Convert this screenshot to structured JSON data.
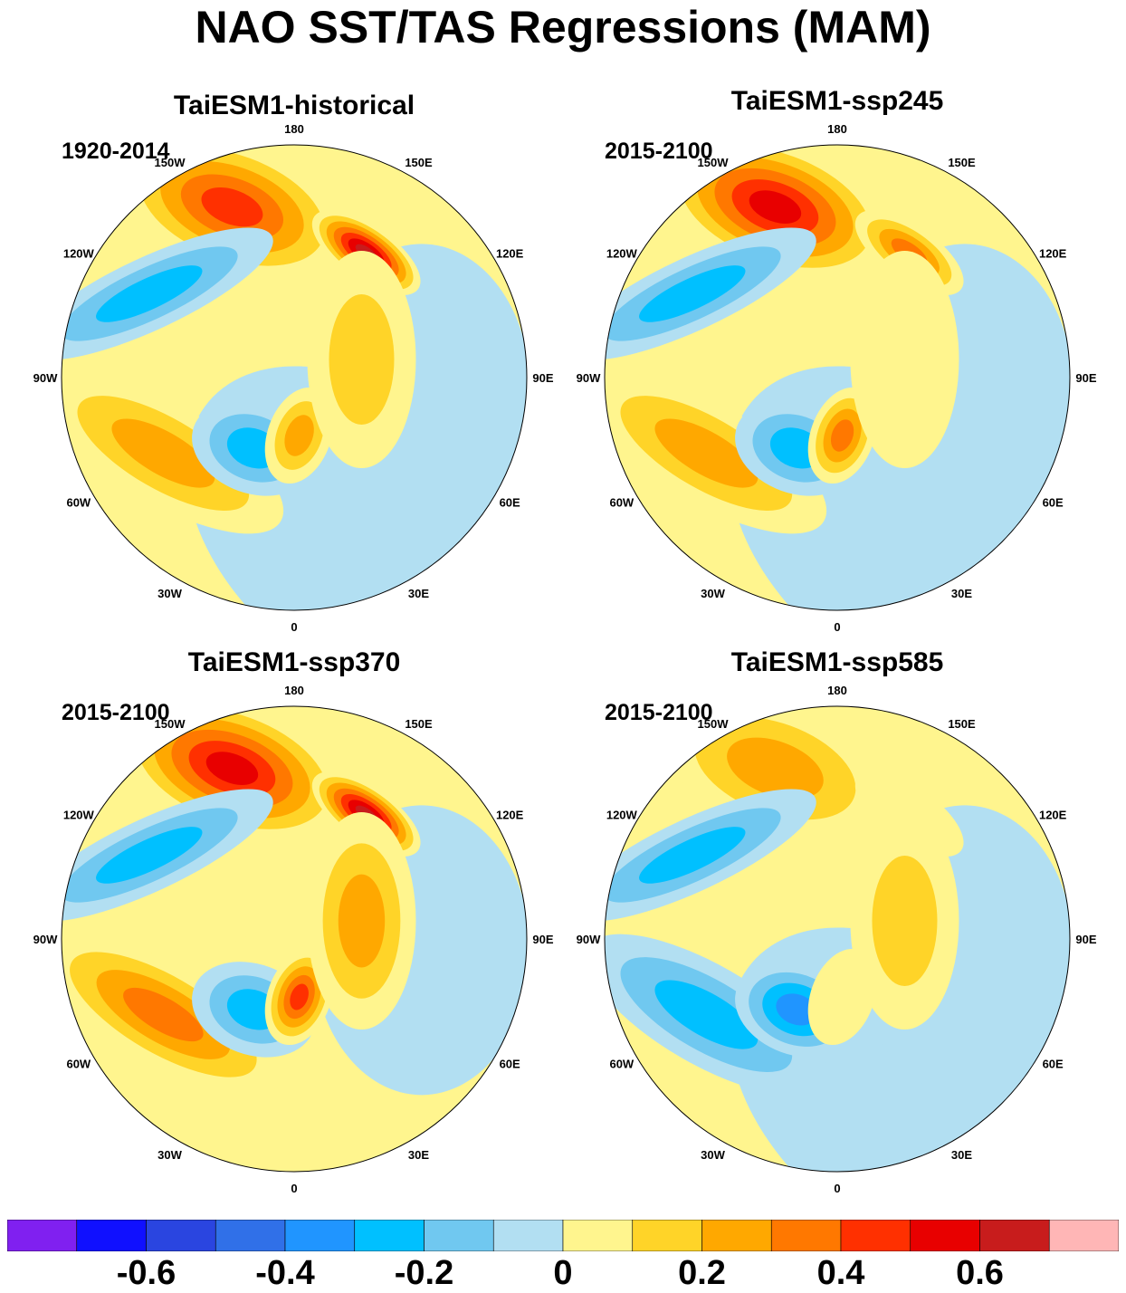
{
  "title": "NAO SST/TAS Regressions (MAM)",
  "longitude_labels": [
    "180",
    "150E",
    "120E",
    "90E",
    "60E",
    "30E",
    "0",
    "30W",
    "60W",
    "90W",
    "120W",
    "150W"
  ],
  "panels": [
    {
      "title": "TaiESM1-historical",
      "period": "1920-2014",
      "pattern": {
        "pacific_max": 0.45,
        "siberia_max": 0.7,
        "atlantic_tripole": [
          0.3,
          -0.3,
          0.25
        ],
        "eurasia": 0.05
      }
    },
    {
      "title": "TaiESM1-ssp245",
      "period": "2015-2100",
      "pattern": {
        "pacific_max": 0.6,
        "siberia_max": 0.4,
        "atlantic_tripole": [
          0.35,
          -0.3,
          0.4
        ],
        "eurasia": -0.05
      }
    },
    {
      "title": "TaiESM1-ssp370",
      "period": "2015-2100",
      "pattern": {
        "pacific_max": 0.6,
        "siberia_max": 0.7,
        "atlantic_tripole": [
          0.4,
          -0.35,
          0.5
        ],
        "eurasia": 0.1
      }
    },
    {
      "title": "TaiESM1-ssp585",
      "period": "2015-2100",
      "pattern": {
        "pacific_max": 0.3,
        "siberia_max": 0.15,
        "atlantic_tripole": [
          -0.3,
          -0.4,
          0.15
        ],
        "eurasia": 0.05
      }
    }
  ],
  "colorbar": {
    "colors": [
      "#8020f0",
      "#1010ff",
      "#2a45e0",
      "#3070e8",
      "#2095ff",
      "#00c0ff",
      "#70c8f0",
      "#b2dff2",
      "#fff58e",
      "#ffd428",
      "#ffa800",
      "#ff7800",
      "#ff3000",
      "#e80000",
      "#c81c1c",
      "#ffb6b6"
    ],
    "labels": [
      "-0.6",
      "-0.4",
      "-0.2",
      "0",
      "0.2",
      "0.4",
      "0.6"
    ],
    "label_values": [
      -0.6,
      -0.4,
      -0.2,
      0,
      0.2,
      0.4,
      0.6
    ],
    "min": -0.8,
    "max": 0.8,
    "step": 0.1
  }
}
